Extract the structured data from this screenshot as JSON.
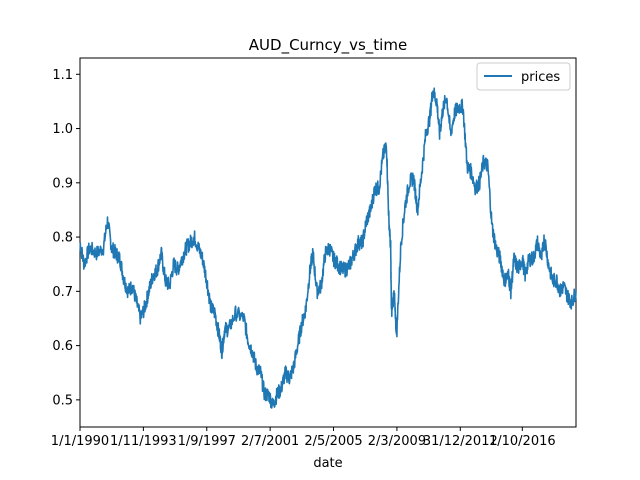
{
  "chart_data": {
    "type": "line",
    "title": "AUD_Curncy_vs_time",
    "xlabel": "date",
    "ylabel": "",
    "x_tick_labels": [
      "1/1/1990",
      "1/11/1993",
      "1/9/1997",
      "2/7/2001",
      "2/5/2005",
      "2/3/2009",
      "31/12/2012",
      "1/10/2016"
    ],
    "x_ticks": [
      "1990-01-01",
      "1993-11-01",
      "1997-09-01",
      "2001-07-02",
      "2005-05-02",
      "2009-03-02",
      "2012-12-31",
      "2016-10-01"
    ],
    "xlim": [
      "1990-01-01",
      "2019-12-31"
    ],
    "ylim": [
      0.45,
      1.13
    ],
    "y_ticks": [
      0.5,
      0.6,
      0.7,
      0.8,
      0.9,
      1.0,
      1.1
    ],
    "y_tick_labels": [
      "0.5",
      "0.6",
      "0.7",
      "0.8",
      "0.9",
      "1.0",
      "1.1"
    ],
    "grid": false,
    "legend_position": "top-right",
    "color": "#1f77b4",
    "series": [
      {
        "name": "prices",
        "x": [
          "1990-01-01",
          "1990-04-01",
          "1990-08-01",
          "1991-01-01",
          "1991-06-01",
          "1991-09-01",
          "1991-12-01",
          "1992-03-01",
          "1992-06-01",
          "1992-09-01",
          "1992-12-01",
          "1993-03-01",
          "1993-06-01",
          "1993-09-01",
          "1993-12-01",
          "1994-03-01",
          "1994-06-01",
          "1994-09-01",
          "1994-12-01",
          "1995-03-01",
          "1995-06-01",
          "1995-09-01",
          "1995-12-01",
          "1996-03-01",
          "1996-06-01",
          "1996-09-01",
          "1996-12-01",
          "1997-03-01",
          "1997-06-01",
          "1997-09-01",
          "1997-12-01",
          "1998-03-01",
          "1998-06-01",
          "1998-08-01",
          "1998-10-01",
          "1999-01-01",
          "1999-06-01",
          "1999-12-01",
          "2000-03-01",
          "2000-06-01",
          "2000-09-01",
          "2000-12-01",
          "2001-03-01",
          "2001-06-01",
          "2001-09-01",
          "2001-12-01",
          "2002-03-01",
          "2002-06-01",
          "2002-09-01",
          "2002-12-01",
          "2003-03-01",
          "2003-06-01",
          "2003-09-01",
          "2003-12-01",
          "2004-02-01",
          "2004-05-01",
          "2004-08-01",
          "2004-11-01",
          "2005-02-01",
          "2005-05-01",
          "2005-08-01",
          "2005-11-01",
          "2006-02-01",
          "2006-05-01",
          "2006-08-01",
          "2006-11-01",
          "2007-02-01",
          "2007-05-01",
          "2007-08-01",
          "2007-11-01",
          "2008-02-01",
          "2008-05-01",
          "2008-07-15",
          "2008-09-01",
          "2008-10-15",
          "2008-11-01",
          "2009-01-01",
          "2009-02-01",
          "2009-03-01",
          "2009-06-01",
          "2009-09-01",
          "2009-12-01",
          "2010-03-01",
          "2010-06-01",
          "2010-09-01",
          "2010-12-01",
          "2011-03-01",
          "2011-05-01",
          "2011-08-01",
          "2011-10-01",
          "2011-12-01",
          "2012-03-01",
          "2012-06-01",
          "2012-09-01",
          "2012-12-01",
          "2013-03-01",
          "2013-06-01",
          "2013-09-01",
          "2013-12-01",
          "2014-03-01",
          "2014-06-01",
          "2014-09-01",
          "2014-12-01",
          "2015-03-01",
          "2015-06-01",
          "2015-09-01",
          "2015-12-01",
          "2016-01-20",
          "2016-04-01",
          "2016-07-01",
          "2016-10-01",
          "2016-12-01",
          "2017-03-01",
          "2017-06-01",
          "2017-09-01",
          "2017-12-01",
          "2018-02-01",
          "2018-05-01",
          "2018-08-01",
          "2018-11-01",
          "2019-01-15",
          "2019-04-01",
          "2019-07-01",
          "2019-10-01",
          "2019-12-31"
        ],
        "y": [
          0.79,
          0.75,
          0.78,
          0.77,
          0.78,
          0.83,
          0.78,
          0.77,
          0.76,
          0.72,
          0.7,
          0.71,
          0.68,
          0.65,
          0.67,
          0.7,
          0.73,
          0.74,
          0.77,
          0.72,
          0.71,
          0.75,
          0.74,
          0.76,
          0.78,
          0.79,
          0.8,
          0.78,
          0.76,
          0.72,
          0.67,
          0.66,
          0.62,
          0.59,
          0.63,
          0.63,
          0.66,
          0.65,
          0.61,
          0.59,
          0.56,
          0.55,
          0.51,
          0.51,
          0.49,
          0.51,
          0.52,
          0.55,
          0.54,
          0.56,
          0.6,
          0.64,
          0.67,
          0.74,
          0.77,
          0.7,
          0.71,
          0.77,
          0.78,
          0.76,
          0.75,
          0.74,
          0.74,
          0.75,
          0.77,
          0.79,
          0.79,
          0.83,
          0.85,
          0.89,
          0.89,
          0.95,
          0.97,
          0.84,
          0.78,
          0.66,
          0.7,
          0.64,
          0.63,
          0.79,
          0.86,
          0.9,
          0.91,
          0.85,
          0.92,
          0.99,
          1.02,
          1.07,
          1.05,
          0.99,
          1.03,
          1.06,
          0.99,
          1.03,
          1.04,
          1.04,
          0.93,
          0.92,
          0.89,
          0.9,
          0.94,
          0.93,
          0.82,
          0.78,
          0.76,
          0.72,
          0.73,
          0.7,
          0.76,
          0.74,
          0.76,
          0.73,
          0.76,
          0.76,
          0.79,
          0.76,
          0.8,
          0.75,
          0.72,
          0.72,
          0.7,
          0.71,
          0.69,
          0.68,
          0.7
        ]
      }
    ]
  }
}
